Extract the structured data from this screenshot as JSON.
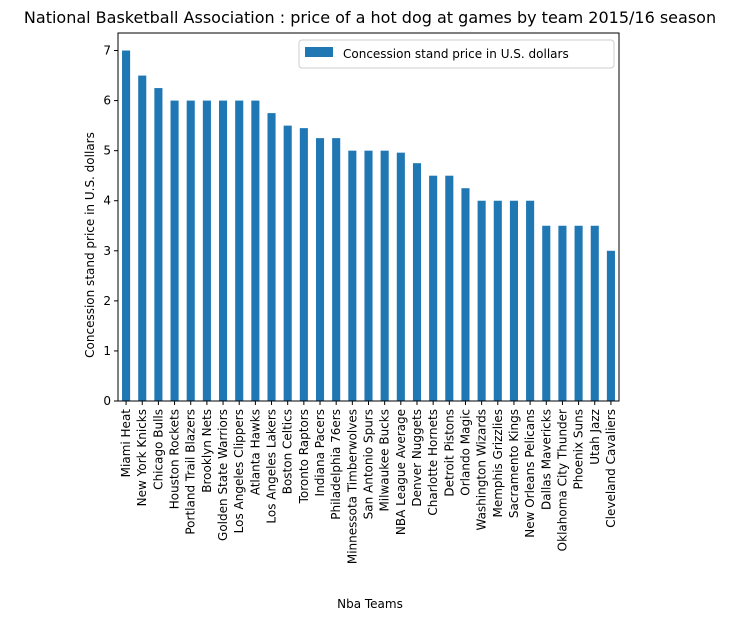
{
  "chart_data": {
    "type": "bar",
    "title": "National Basketball Association : price of a hot dog at games by team 2015/16 season",
    "xlabel": "Nba Teams",
    "ylabel": "Concession stand price in U.S. dollars",
    "ylim": [
      0,
      7.35
    ],
    "yticks": [
      0,
      1,
      2,
      3,
      4,
      5,
      6,
      7
    ],
    "legend_position": "top-right",
    "grid": false,
    "colors": {
      "bar": "#1f77b4"
    },
    "categories": [
      "Miami Heat",
      "New York Knicks",
      "Chicago Bulls",
      "Houston Rockets",
      "Portland Trail Blazers",
      "Brooklyn Nets",
      "Golden State Warriors",
      "Los Angeles Clippers",
      "Atlanta Hawks",
      "Los Angeles Lakers",
      "Boston Celtics",
      "Toronto Raptors",
      "Indiana Pacers",
      "Philadelphia 76ers",
      "Minnessota Timberwolves",
      "San Antonio Spurs",
      "Milwaukee Bucks",
      "NBA League Average",
      "Denver Nuggets",
      "Charlotte Hornets",
      "Detroit Pistons",
      "Orlando Magic",
      "Washington Wizards",
      "Memphis Grizzlies",
      "Sacramento Kings",
      "New Orleans Pelicans",
      "Dallas Mavericks",
      "Oklahoma City Thunder",
      "Phoenix Suns",
      "Utah Jazz",
      "Cleveland Cavaliers"
    ],
    "series": [
      {
        "name": "Concession stand price in U.S. dollars",
        "values": [
          7.0,
          6.5,
          6.25,
          6.0,
          6.0,
          6.0,
          6.0,
          6.0,
          6.0,
          5.75,
          5.5,
          5.45,
          5.25,
          5.25,
          5.0,
          5.0,
          5.0,
          4.96,
          4.75,
          4.5,
          4.5,
          4.25,
          4.0,
          4.0,
          4.0,
          4.0,
          3.5,
          3.5,
          3.5,
          3.5,
          3.0
        ]
      }
    ]
  }
}
